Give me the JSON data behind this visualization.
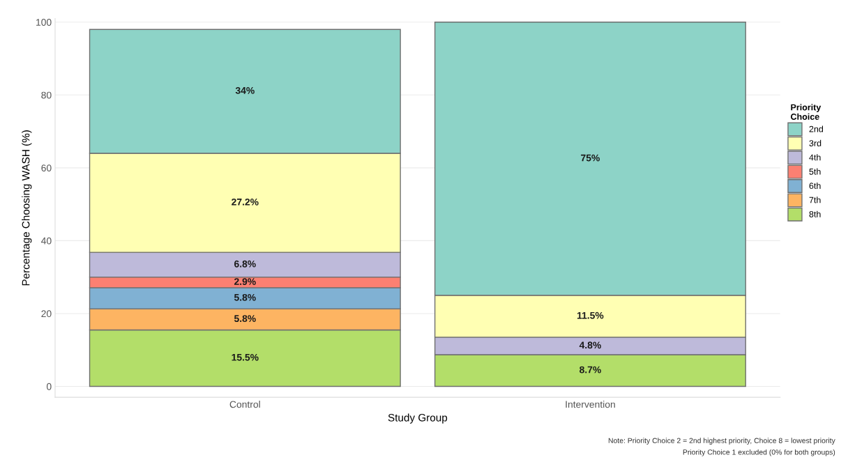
{
  "chart_data": {
    "type": "bar",
    "stacked": true,
    "categories": [
      "Control",
      "Intervention"
    ],
    "xlabel": "Study Group",
    "ylabel": "Percentage Choosing WASH (%)",
    "legend_title": "Priority\nChoice",
    "ylim": [
      -3,
      101
    ],
    "yticks": [
      0,
      20,
      40,
      60,
      80,
      100
    ],
    "grid": "y",
    "legend": "right",
    "series": [
      {
        "name": "8th",
        "color": "#b3de69",
        "values": [
          15.5,
          8.7
        ],
        "value_labels": [
          "15.5%",
          "8.7%"
        ]
      },
      {
        "name": "7th",
        "color": "#fdb462",
        "values": [
          5.8,
          null
        ],
        "value_labels": [
          "5.8%",
          null
        ]
      },
      {
        "name": "6th",
        "color": "#80b1d3",
        "values": [
          5.8,
          null
        ],
        "value_labels": [
          "5.8%",
          null
        ]
      },
      {
        "name": "5th",
        "color": "#fb8072",
        "values": [
          2.9,
          null
        ],
        "value_labels": [
          "2.9%",
          null
        ]
      },
      {
        "name": "4th",
        "color": "#bebada",
        "values": [
          6.8,
          4.8
        ],
        "value_labels": [
          "6.8%",
          "4.8%"
        ]
      },
      {
        "name": "3rd",
        "color": "#ffffb3",
        "values": [
          27.2,
          11.5
        ],
        "value_labels": [
          "27.2%",
          "11.5%"
        ]
      },
      {
        "name": "2nd",
        "color": "#8dd3c7",
        "values": [
          34,
          75
        ],
        "value_labels": [
          "34%",
          "75%"
        ]
      }
    ],
    "annotations": [
      "Note: Priority Choice 2 = 2nd highest priority, Choice 8 = lowest priority",
      "Priority Choice 1 excluded (0% for both groups)"
    ]
  }
}
